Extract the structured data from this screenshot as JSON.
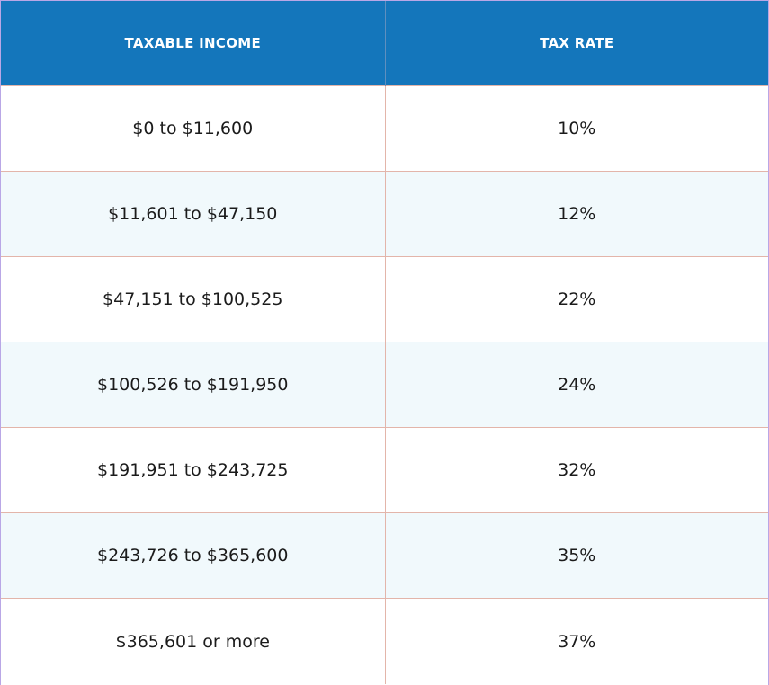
{
  "table": {
    "headers": [
      "TAXABLE INCOME",
      "TAX RATE"
    ],
    "rows": [
      [
        "$0 to $11,600",
        "10%"
      ],
      [
        "$11,601 to $47,150",
        "12%"
      ],
      [
        "$47,151 to $100,525",
        "22%"
      ],
      [
        "$100,526 to $191,950",
        "24%"
      ],
      [
        "$191,951 to $243,725",
        "32%"
      ],
      [
        "$243,726 to $365,600",
        "35%"
      ],
      [
        "$365,601 or more",
        "37%"
      ]
    ]
  },
  "colors": {
    "header_bg": "#1476bb",
    "header_text": "#ffffff",
    "stripe_bg": "#f1f9fc",
    "row_border": "#e3b5aa"
  }
}
